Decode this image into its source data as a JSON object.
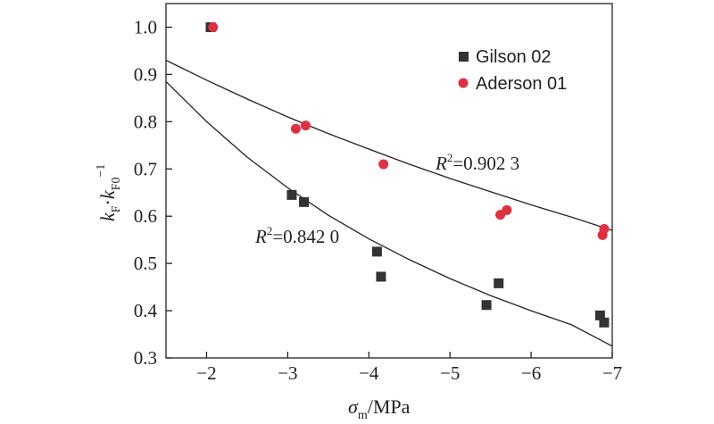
{
  "chart_data": {
    "type": "scatter",
    "xlabel": {
      "base": "σ",
      "sub": "m",
      "rest": "/MPa"
    },
    "ylabel": {
      "k1": "k",
      "sub1": "F",
      "dot": "·",
      "k2": "k",
      "sub2": "F0",
      "sup2": "−1"
    },
    "xlim": [
      -1.5,
      -7
    ],
    "ylim": [
      0.3,
      1.05
    ],
    "xticks": [
      -2,
      -3,
      -4,
      -5,
      -6,
      -7
    ],
    "xtick_labels": [
      "−2",
      "−3",
      "−4",
      "−5",
      "−6",
      "−7"
    ],
    "yticks": [
      0.3,
      0.4,
      0.5,
      0.6,
      0.7,
      0.8,
      0.9,
      1.0
    ],
    "ytick_labels": [
      "0.3",
      "0.4",
      "0.5",
      "0.6",
      "0.7",
      "0.8",
      "0.9",
      "1.0"
    ],
    "grid": false,
    "legend_position": "top-right",
    "series": [
      {
        "name": "Gilson 02",
        "marker": "square",
        "color": "#333333",
        "points": [
          [
            -2.05,
            1.0
          ],
          [
            -3.05,
            0.645
          ],
          [
            -3.2,
            0.63
          ],
          [
            -4.1,
            0.525
          ],
          [
            -4.15,
            0.472
          ],
          [
            -5.45,
            0.412
          ],
          [
            -5.6,
            0.458
          ],
          [
            -6.85,
            0.39
          ],
          [
            -6.9,
            0.375
          ]
        ]
      },
      {
        "name": "Aderson 01",
        "marker": "circle",
        "color": "#e0303f",
        "points": [
          [
            -2.08,
            1.0
          ],
          [
            -3.1,
            0.785
          ],
          [
            -3.22,
            0.792
          ],
          [
            -4.18,
            0.71
          ],
          [
            -5.62,
            0.603
          ],
          [
            -5.7,
            0.613
          ],
          [
            -6.88,
            0.56
          ],
          [
            -6.9,
            0.573
          ]
        ]
      }
    ],
    "fit_curves": [
      {
        "annotation": {
          "r": "R",
          "sup": "2",
          "value": "=0.902 3"
        },
        "points": [
          [
            -1.5,
            0.93
          ],
          [
            -2.0,
            0.888
          ],
          [
            -2.5,
            0.848
          ],
          [
            -3.0,
            0.81
          ],
          [
            -3.5,
            0.775
          ],
          [
            -4.0,
            0.742
          ],
          [
            -4.5,
            0.71
          ],
          [
            -5.0,
            0.68
          ],
          [
            -5.5,
            0.652
          ],
          [
            -6.0,
            0.624
          ],
          [
            -6.5,
            0.598
          ],
          [
            -7.0,
            0.57
          ]
        ]
      },
      {
        "annotation": {
          "r": "R",
          "sup": "2",
          "value": "=0.842 0"
        },
        "points": [
          [
            -1.5,
            0.885
          ],
          [
            -2.0,
            0.8
          ],
          [
            -2.5,
            0.725
          ],
          [
            -3.0,
            0.66
          ],
          [
            -3.5,
            0.602
          ],
          [
            -4.0,
            0.552
          ],
          [
            -4.5,
            0.508
          ],
          [
            -5.0,
            0.468
          ],
          [
            -5.5,
            0.432
          ],
          [
            -6.0,
            0.4
          ],
          [
            -6.5,
            0.37
          ],
          [
            -7.0,
            0.325
          ]
        ]
      }
    ]
  }
}
